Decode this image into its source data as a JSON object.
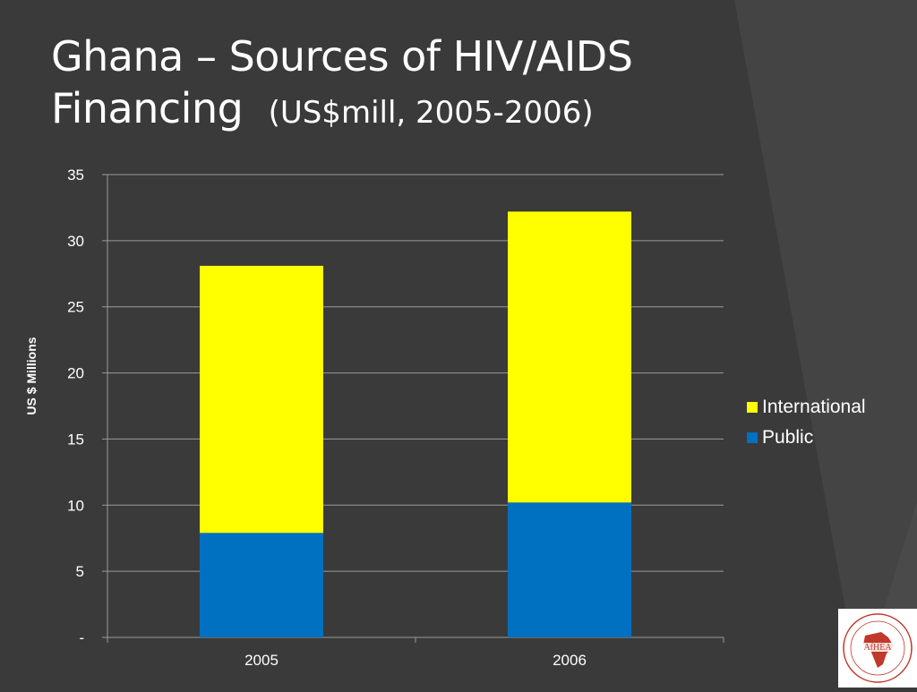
{
  "slide": {
    "title_line1": "Ghana – Sources of HIV/AIDS",
    "title_line2": "Financing",
    "title_sub": "(US$mill, 2005-2006)"
  },
  "chart_data": {
    "type": "bar",
    "stacked": true,
    "categories": [
      "2005",
      "2006"
    ],
    "series": [
      {
        "name": "Public",
        "color": "#0070c0",
        "values": [
          7.9,
          10.2
        ]
      },
      {
        "name": "International",
        "color": "#ffff00",
        "values": [
          20.2,
          22.0
        ]
      }
    ],
    "ylabel": "US $  Millions",
    "ylim": [
      0,
      35
    ],
    "yticks": [
      0,
      5,
      10,
      15,
      20,
      25,
      30,
      35
    ],
    "ytick_labels": [
      "-",
      "5",
      "10",
      "15",
      "20",
      "25",
      "30",
      "35"
    ],
    "grid": true,
    "legend_position": "right",
    "legend_order": [
      "International",
      "Public"
    ]
  },
  "logo": {
    "text": "AfHEA",
    "ring_text": "African Health Economics & Policy Association",
    "accent_color": "#c0392b"
  }
}
